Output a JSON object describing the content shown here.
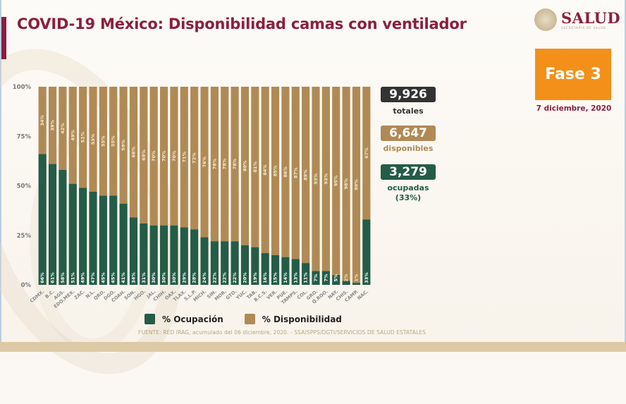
{
  "header": {
    "title": "COVID-19 México: Disponibilidad camas con ventilador",
    "logo_text": "SALUD",
    "logo_subtext": "SECRETARÍA DE SALUD"
  },
  "phase_badge": {
    "label": "Fase 3",
    "color": "#f39019"
  },
  "date": "7 diciembre, 2020",
  "stats": {
    "total": {
      "value": "9,926",
      "label": "totales",
      "color": "#333333"
    },
    "available": {
      "value": "6,647",
      "label": "disponibles",
      "color": "#b08a55"
    },
    "occupied": {
      "value": "3,279",
      "label": "ocupadas",
      "sublabel": "(33%)",
      "color": "#245c47"
    }
  },
  "legend": {
    "occupancy": "% Ocupación",
    "availability": "% Disponibilidad"
  },
  "source": "FUENTE: RED IRAG, acumulado del 06 diciembre, 2020. -  SSA/SPPS/DGTI/SERVICIOS DE SALUD ESTATALES",
  "chart_data": {
    "type": "bar",
    "stacked": true,
    "title": "COVID-19 México: Disponibilidad camas con ventilador",
    "xlabel": "",
    "ylabel": "",
    "ylim": [
      0,
      100
    ],
    "yticks": [
      "0%",
      "25%",
      "50%",
      "75%",
      "100%"
    ],
    "grid": false,
    "legend_position": "bottom",
    "categories": [
      "CDMX.",
      "B.C.",
      "AGS.",
      "EDO.MEX.",
      "ZAC.",
      "N.L.",
      "QRO.",
      "DGO.",
      "COAH.",
      "SON.",
      "HGO.",
      "JAL.",
      "CHIH.",
      "OAX.",
      "TLAX.",
      "S.L.P.",
      "MICH.",
      "SIN.",
      "MOR.",
      "GTO.",
      "YUC.",
      "TAB.",
      "B.C.S.",
      "VER.",
      "PUE.",
      "TAMPS.",
      "COL.",
      "GRO.",
      "Q.ROO.",
      "NAY.",
      "CHIS.",
      "CAMP.",
      "NAC."
    ],
    "series": [
      {
        "name": "% Ocupación",
        "color": "#245c47",
        "values": [
          66,
          61,
          58,
          51,
          49,
          47,
          45,
          45,
          41,
          34,
          31,
          30,
          30,
          30,
          29,
          28,
          24,
          22,
          22,
          22,
          20,
          19,
          16,
          15,
          14,
          13,
          11,
          7,
          7,
          5,
          2,
          1,
          33
        ]
      },
      {
        "name": "% Disponibilidad",
        "color": "#b08a55",
        "values": [
          34,
          39,
          42,
          49,
          51,
          53,
          55,
          55,
          59,
          66,
          69,
          70,
          70,
          70,
          71,
          72,
          76,
          78,
          78,
          78,
          80,
          81,
          84,
          85,
          86,
          87,
          89,
          93,
          93,
          95,
          98,
          99,
          67
        ]
      }
    ]
  }
}
